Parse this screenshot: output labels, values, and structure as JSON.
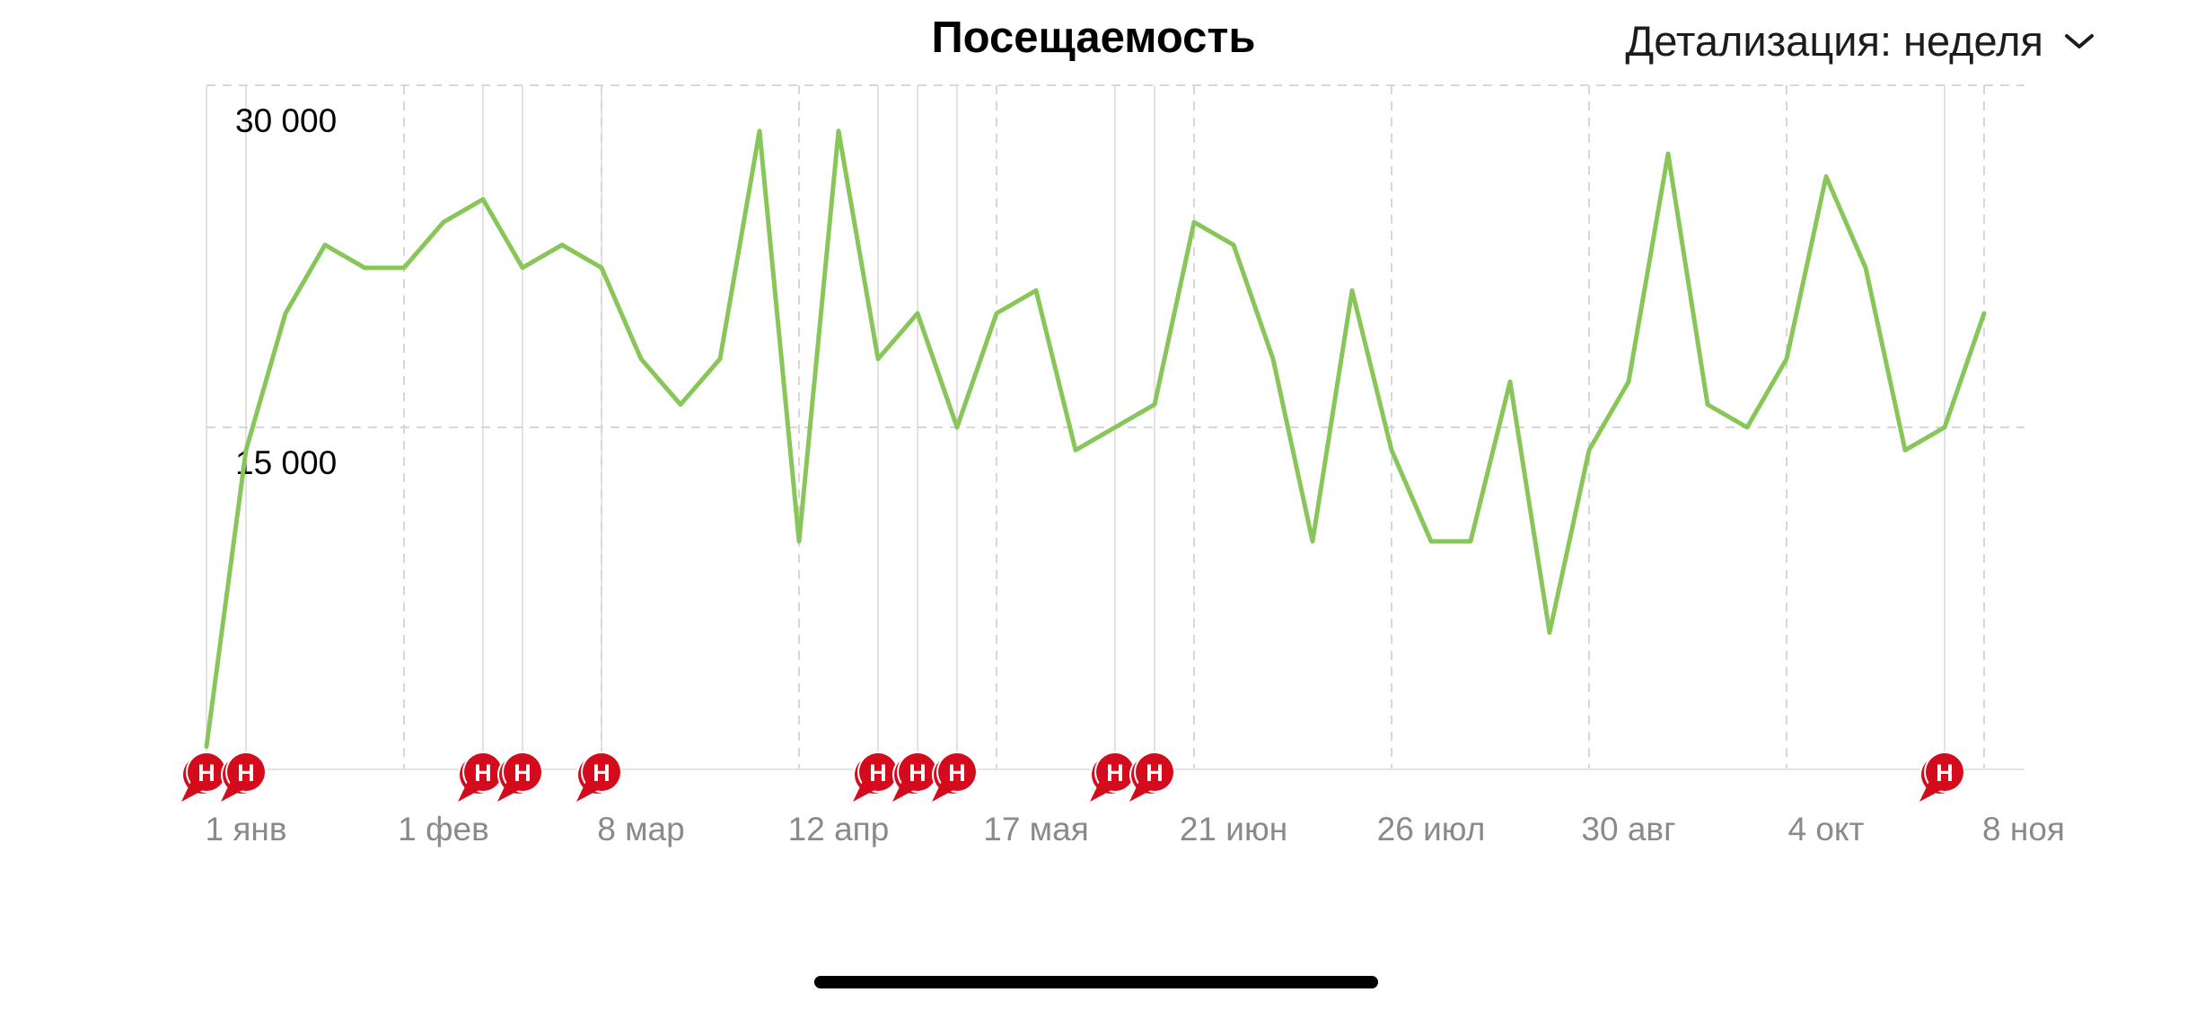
{
  "header": {
    "title": "Посещаемость",
    "detail_label": "Детализация: неделя",
    "detail_icon": "chevron-down-icon"
  },
  "chart_data": {
    "type": "line",
    "title": "Посещаемость",
    "ylim": [
      0,
      30000
    ],
    "y_ticks": [
      15000,
      30000
    ],
    "y_tick_labels": [
      "15 000",
      "30 000"
    ],
    "x_tick_labels": [
      "1 янв",
      "1 фев",
      "8 мар",
      "12 апр",
      "17 мая",
      "21 июн",
      "26 июл",
      "30 авг",
      "4 окт",
      "8 ноя"
    ],
    "grid": true,
    "series": [
      {
        "color": "#88c65a",
        "values": [
          1000,
          14000,
          20000,
          23000,
          22000,
          22000,
          24000,
          25000,
          22000,
          23000,
          22000,
          18000,
          16000,
          18000,
          28000,
          10000,
          28000,
          18000,
          20000,
          15000,
          20000,
          21000,
          14000,
          15000,
          16000,
          24000,
          23000,
          18000,
          10000,
          21000,
          14000,
          10000,
          10000,
          17000,
          6000,
          14000,
          17000,
          27000,
          16000,
          15000,
          18000,
          26000,
          22000,
          14000,
          15000,
          20000
        ]
      }
    ],
    "annotation_markers": {
      "label": "Н",
      "color": "#d30b1c",
      "indices": [
        0,
        1,
        7,
        8,
        10,
        17,
        18,
        19,
        23,
        24,
        44
      ]
    }
  }
}
